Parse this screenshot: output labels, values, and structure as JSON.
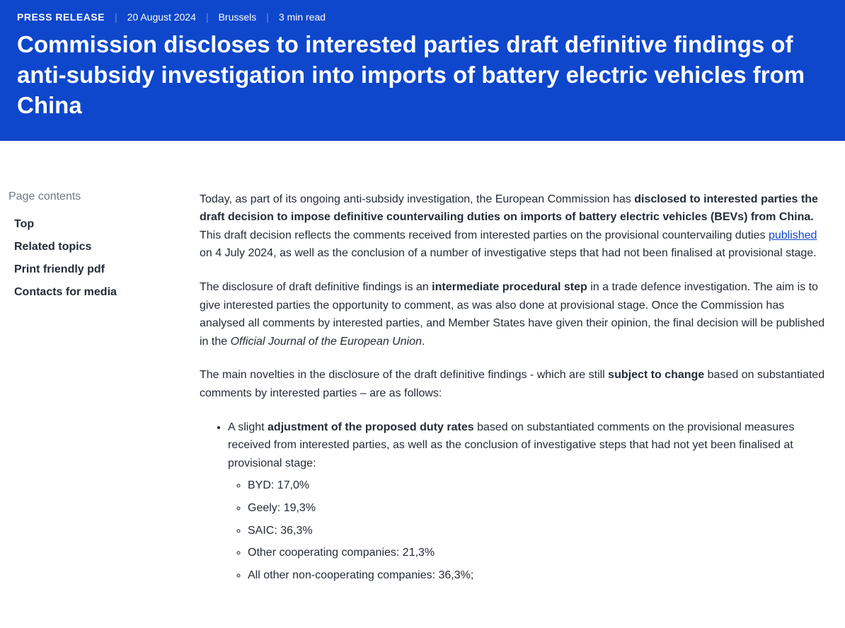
{
  "header": {
    "meta": {
      "label": "PRESS RELEASE",
      "date": "20 August 2024",
      "location": "Brussels",
      "readtime": "3 min read"
    },
    "headline": "Commission discloses to interested parties draft definitive findings of anti-subsidy investigation into imports of battery electric vehicles from China"
  },
  "sidebar": {
    "heading": "Page contents",
    "items": [
      "Top",
      "Related topics",
      "Print friendly pdf",
      "Contacts for media"
    ]
  },
  "body": {
    "p1_a": "Today, as part of its ongoing anti-subsidy investigation, the European Commission has ",
    "p1_b": "disclosed to interested parties the draft decision to impose definitive countervailing duties on imports of battery electric vehicles (BEVs) from China.",
    "p1_c": " This draft decision reflects the comments received from interested parties on the provisional countervailing duties ",
    "p1_link": "published",
    "p1_d": " on 4 July 2024, as well as the conclusion of a number of investigative steps that had not been finalised at provisional stage.",
    "p2_a": "The disclosure of draft definitive findings is an ",
    "p2_b": "intermediate procedural step",
    "p2_c": " in a trade defence investigation. The aim is to give interested parties the opportunity to comment, as was also done at provisional stage. Once the Commission has analysed all comments by interested parties, and Member States have given their opinion, the final decision will be published in the ",
    "p2_em": "Official Journal of the European Union",
    "p2_d": ".",
    "p3_a": "The main novelties in the disclosure of the draft definitive findings - which are still ",
    "p3_b": "subject to change",
    "p3_c": " based on substantiated comments by interested parties – are as follows:",
    "bullet1_a": "A slight ",
    "bullet1_b": "adjustment of the proposed duty rates",
    "bullet1_c": " based on substantiated comments on the provisional measures received from interested parties, as well as the conclusion of investigative steps that had not yet been finalised at provisional stage:",
    "rates": [
      "BYD: 17,0%",
      "Geely: 19,3%",
      "SAIC: 36,3%",
      "Other cooperating companies: 21,3%",
      "All other non-cooperating companies: 36,3%;"
    ]
  },
  "colors": {
    "header_bg": "#0e47cb",
    "header_text": "#ffffff",
    "link": "#0e47cb",
    "body_text": "#262b38",
    "sidebar_heading": "#707784"
  }
}
